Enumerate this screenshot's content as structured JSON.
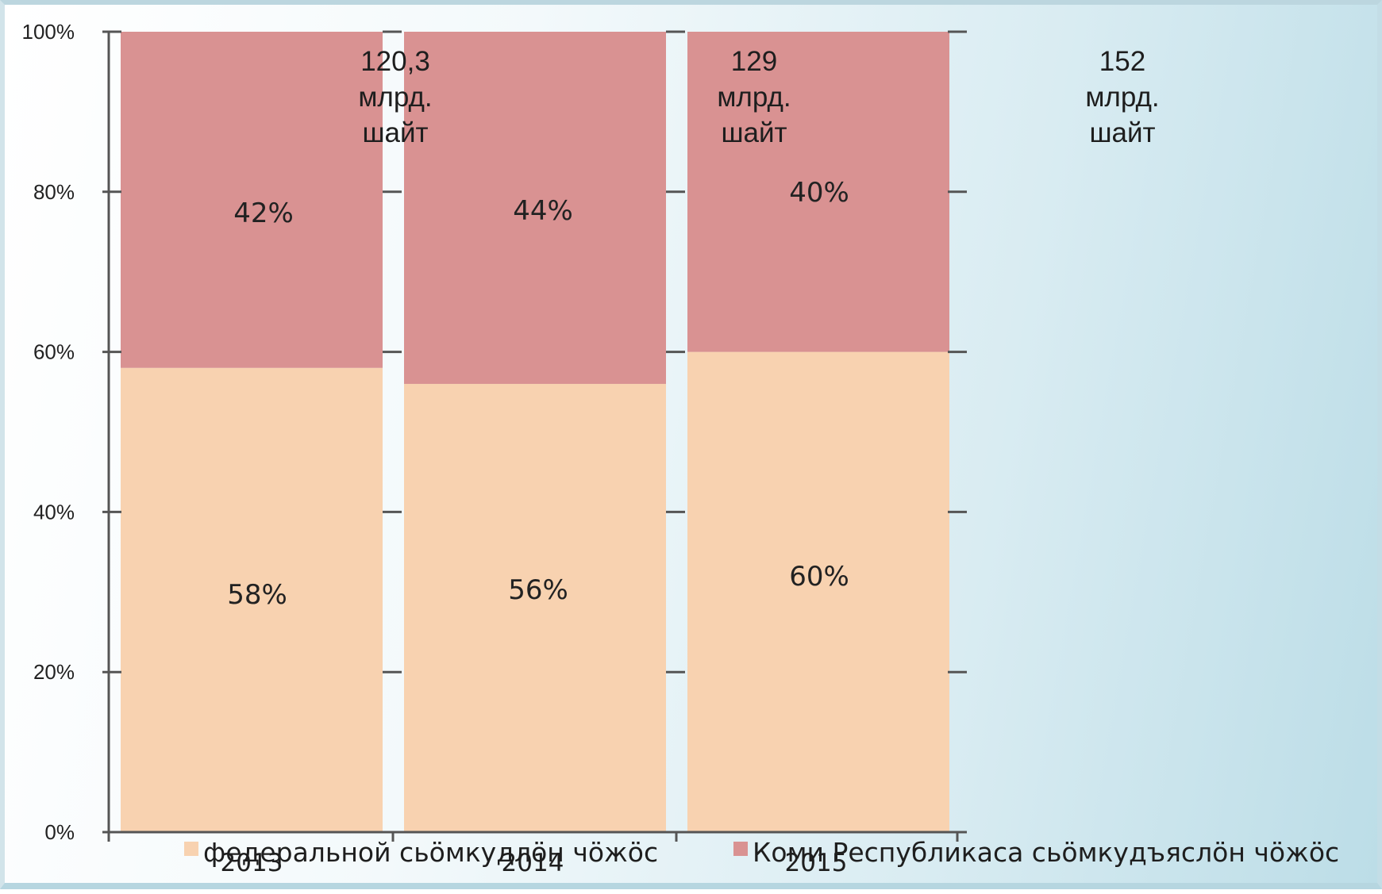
{
  "chart_data": {
    "type": "bar",
    "stacked": true,
    "percent_stacked": true,
    "categories": [
      "2013",
      "2014",
      "2015"
    ],
    "series": [
      {
        "name": "федеральной сьӧмкудлӧн чӧжӧс",
        "values": [
          58,
          56,
          60
        ],
        "labels": [
          "58%",
          "56%",
          "60%"
        ],
        "color": "#f8d2b0"
      },
      {
        "name": "Коми Республикаса сьӧмкудъяслӧн чӧжӧс",
        "values": [
          42,
          44,
          40
        ],
        "labels": [
          "42%",
          "44%",
          "40%"
        ],
        "color": "#d99292"
      }
    ],
    "totals": [
      [
        "120,3",
        "млрд.",
        "шайт"
      ],
      [
        "129",
        "млрд.",
        "шайт"
      ],
      [
        "152",
        "млрд.",
        "шайт"
      ]
    ],
    "y_ticks": [
      "0%",
      "20%",
      "40%",
      "60%",
      "80%",
      "100%"
    ],
    "ylim": [
      0,
      100
    ],
    "legend_position": "bottom",
    "grid": false,
    "axis_color": "#555555"
  }
}
